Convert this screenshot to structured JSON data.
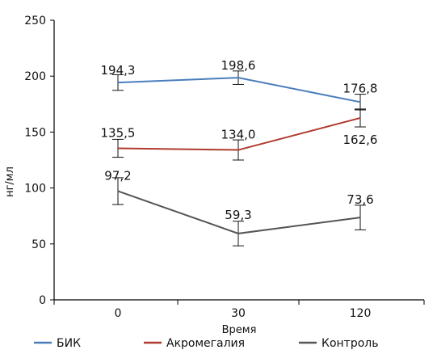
{
  "chart_data": {
    "type": "line",
    "categories": [
      "0",
      "30",
      "120"
    ],
    "xlabel": "Время",
    "ylabel": "нг/мл",
    "ylim": [
      0,
      250
    ],
    "yticks": [
      0,
      50,
      100,
      150,
      200,
      250
    ],
    "grid": false,
    "legend_position": "bottom",
    "series": [
      {
        "name": "БИК",
        "color": "#4a7ebb",
        "values": [
          194.3,
          198.6,
          176.8
        ],
        "labels": [
          "194,3",
          "198,6",
          "176,8"
        ],
        "error": [
          7,
          6,
          7
        ]
      },
      {
        "name": "Акромегалия",
        "color": "#b03a2e",
        "values": [
          135.5,
          134.0,
          162.6
        ],
        "labels": [
          "135,5",
          "134,0",
          "162,6"
        ],
        "error": [
          8,
          9,
          8
        ]
      },
      {
        "name": "Контроль",
        "color": "#555555",
        "values": [
          97.2,
          59.3,
          73.6
        ],
        "labels": [
          "97,2",
          "59,3",
          "73,6"
        ],
        "error": [
          12,
          11,
          11
        ]
      }
    ]
  }
}
